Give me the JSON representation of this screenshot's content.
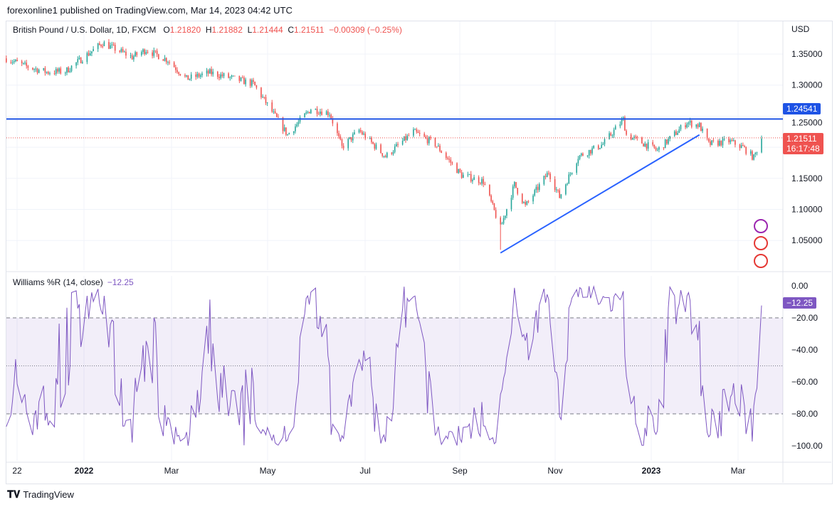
{
  "header": {
    "published": "forexonline1 published on TradingView.com, Mar 14, 2023 04:42 UTC"
  },
  "legend": {
    "symbol": "British Pound / U.S. Dollar, 1D, FXCM",
    "o_label": "O",
    "o": "1.21820",
    "h_label": "H",
    "h": "1.21882",
    "l_label": "L",
    "l": "1.21444",
    "c_label": "C",
    "c": "1.21511",
    "change": "−0.00309 (−0.25%)"
  },
  "price_axis": {
    "currency": "USD",
    "ticks": [
      "1.35000",
      "1.30000",
      "1.25000",
      "1.15000",
      "1.10000",
      "1.05000"
    ],
    "level_tag": "1.24541",
    "last_price": "1.21511",
    "countdown": "16:17:48"
  },
  "indicator": {
    "name": "Williams %R (14, close)",
    "value": "−12.25",
    "tag": "−12.25",
    "ticks": [
      "0.00",
      "−20.00",
      "−40.00",
      "−60.00",
      "−80.00",
      "−100.00"
    ]
  },
  "time_axis": [
    "22",
    "2022",
    "Mar",
    "May",
    "Jul",
    "Sep",
    "Nov",
    "2023",
    "Mar"
  ],
  "footer": {
    "brand": "TradingView"
  },
  "colors": {
    "up": "#26a69a",
    "down": "#ef5350",
    "level_line": "#1e53e5",
    "trend_line": "#2962ff",
    "wpr": "#7e57c2"
  },
  "chart_data": {
    "type": "candlestick",
    "title": "British Pound / U.S. Dollar, 1D, FXCM",
    "ylim": [
      1.01,
      1.39
    ],
    "horizontal_level": 1.24541,
    "trend_line": [
      [
        "2022-09-26",
        1.03
      ],
      [
        "2023-02-01",
        1.22
      ]
    ],
    "approx_close_path": [
      [
        "2021-11-12",
        1.343
      ],
      [
        "2021-11-25",
        1.33
      ],
      [
        "2021-12-08",
        1.321
      ],
      [
        "2021-12-20",
        1.322
      ],
      [
        "2022-01-13",
        1.368
      ],
      [
        "2022-02-01",
        1.345
      ],
      [
        "2022-02-10",
        1.357
      ],
      [
        "2022-02-24",
        1.34
      ],
      [
        "2022-03-08",
        1.31
      ],
      [
        "2022-03-23",
        1.32
      ],
      [
        "2022-04-08",
        1.31
      ],
      [
        "2022-04-20",
        1.302
      ],
      [
        "2022-05-12",
        1.22
      ],
      [
        "2022-05-27",
        1.262
      ],
      [
        "2022-06-08",
        1.255
      ],
      [
        "2022-06-16",
        1.2
      ],
      [
        "2022-06-27",
        1.227
      ],
      [
        "2022-07-14",
        1.185
      ],
      [
        "2022-08-01",
        1.225
      ],
      [
        "2022-08-15",
        1.205
      ],
      [
        "2022-09-01",
        1.155
      ],
      [
        "2022-09-15",
        1.145
      ],
      [
        "2022-09-26",
        1.07
      ],
      [
        "2022-10-05",
        1.14
      ],
      [
        "2022-10-12",
        1.105
      ],
      [
        "2022-10-27",
        1.16
      ],
      [
        "2022-11-03",
        1.12
      ],
      [
        "2022-11-15",
        1.185
      ],
      [
        "2022-12-01",
        1.205
      ],
      [
        "2022-12-14",
        1.245
      ],
      [
        "2022-12-16",
        1.22
      ],
      [
        "2023-01-05",
        1.195
      ],
      [
        "2023-01-24",
        1.24
      ],
      [
        "2023-02-01",
        1.235
      ],
      [
        "2023-02-07",
        1.205
      ],
      [
        "2023-02-20",
        1.21
      ],
      [
        "2023-03-01",
        1.2
      ],
      [
        "2023-03-08",
        1.183
      ],
      [
        "2023-03-13",
        1.215
      ]
    ],
    "williams_r": {
      "period": 14,
      "last": -12.25,
      "levels": [
        -20,
        -50,
        -80
      ],
      "ylim": [
        -100,
        0
      ]
    }
  }
}
